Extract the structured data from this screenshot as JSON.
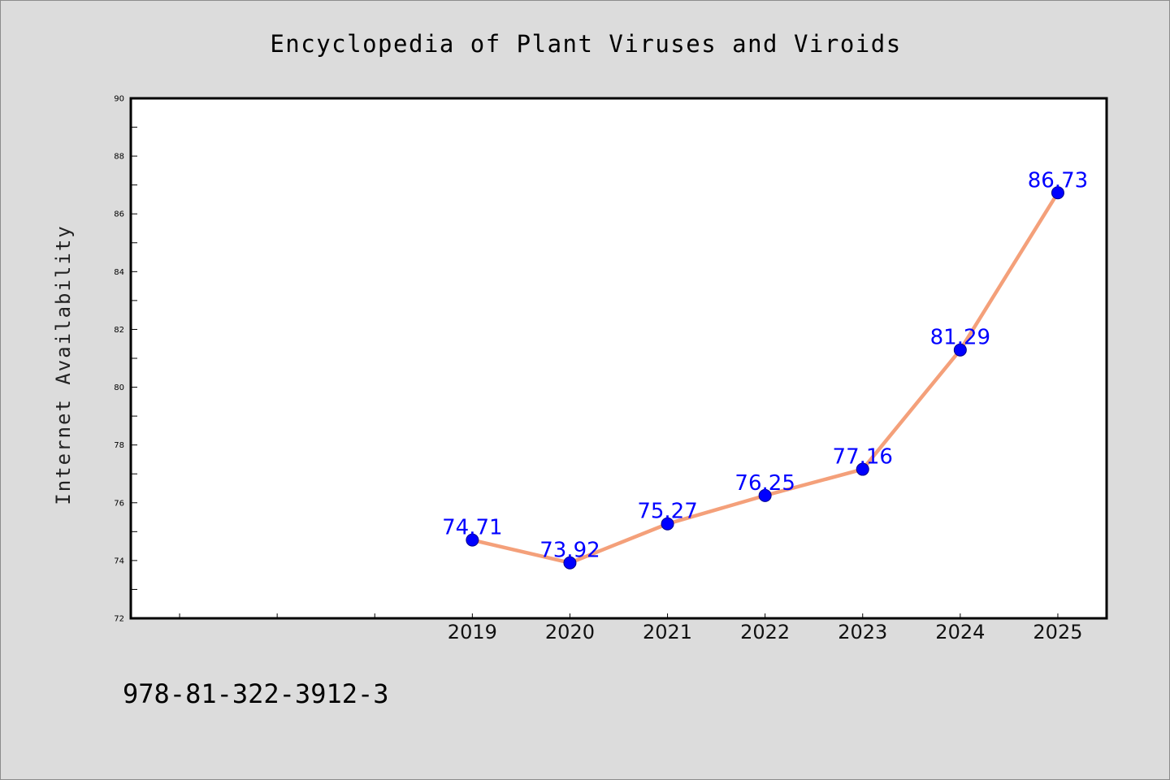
{
  "page": {
    "footer": "978-81-322-3912-3",
    "background": "#dcdcdc"
  },
  "chart_data": {
    "type": "line",
    "title": "Encyclopedia of Plant Viruses and Viroids",
    "xlabel": "",
    "ylabel": "Internet Availability",
    "categories": [
      "2019",
      "2020",
      "2021",
      "2022",
      "2023",
      "2024",
      "2025"
    ],
    "x": [
      2019,
      2020,
      2021,
      2022,
      2023,
      2024,
      2025
    ],
    "values": [
      74.71,
      73.92,
      75.27,
      76.25,
      77.16,
      81.29,
      86.73
    ],
    "data_labels": [
      "74.71",
      "73.92",
      "75.27",
      "76.25",
      "77.16",
      "81.29",
      "86.73"
    ],
    "xlim": [
      2015.5,
      2025.5
    ],
    "ylim": [
      72,
      90
    ],
    "yticks": [
      72,
      74,
      76,
      78,
      80,
      82,
      84,
      86,
      88,
      90
    ],
    "ytick_labels": [
      "72",
      "74",
      "76",
      "78",
      "80",
      "82",
      "84",
      "86",
      "88",
      "90"
    ],
    "grid": false,
    "legend": "none",
    "colors": {
      "line": "#f4a07a",
      "marker": "#0000ff",
      "data_label": "#0000ff",
      "plot_background": "#ffffff",
      "frame": "#000000"
    }
  }
}
